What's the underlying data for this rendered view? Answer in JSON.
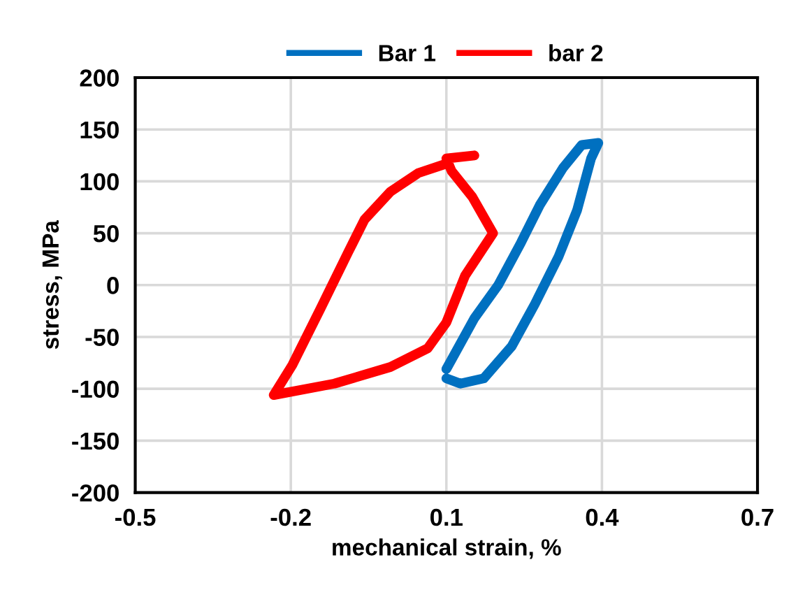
{
  "chart_data": {
    "type": "line",
    "xlabel": "mechanical strain, %",
    "ylabel": "stress, MPa",
    "xlim": [
      -0.5,
      0.7
    ],
    "xticks": [
      -0.5,
      -0.2,
      0.1,
      0.4,
      0.7
    ],
    "ylim": [
      -200,
      200
    ],
    "yticks": [
      -200,
      -150,
      -100,
      -50,
      0,
      50,
      100,
      150,
      200
    ],
    "grid": true,
    "legend": "top",
    "marker": "none",
    "line_style": "solid",
    "series": [
      {
        "name": "Bar 1",
        "color": "#0070c0",
        "x": [
          0.1,
          0.154,
          0.2,
          0.244,
          0.28,
          0.325,
          0.361,
          0.393,
          0.379,
          0.352,
          0.316,
          0.271,
          0.226,
          0.172,
          0.127,
          0.1
        ],
        "values": [
          -81,
          -32,
          0,
          41,
          77,
          113,
          135,
          137,
          122,
          72,
          27,
          -18,
          -59,
          -90,
          -95,
          -90
        ]
      },
      {
        "name": "bar 2",
        "color": "#ff0000",
        "x": [
          0.154,
          0.1,
          0.11,
          0.15,
          0.19,
          0.136,
          0.1,
          0.064,
          -0.008,
          -0.116,
          -0.233,
          -0.197,
          -0.143,
          -0.089,
          -0.058,
          -0.008,
          0.046,
          0.1
        ],
        "values": [
          125,
          122,
          110,
          85,
          50,
          9,
          -36,
          -61,
          -79,
          -95,
          -106,
          -77,
          -23,
          32,
          63,
          90,
          108,
          117
        ]
      }
    ]
  }
}
